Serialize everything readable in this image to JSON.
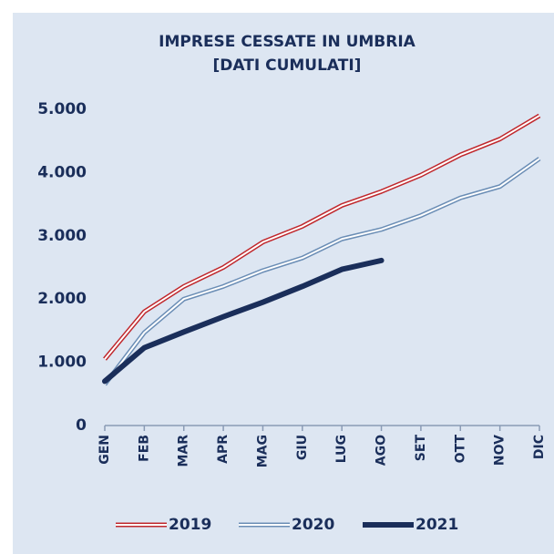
{
  "chart_data": {
    "type": "line",
    "title": [
      "IMPRESE CESSATE IN UMBRIA",
      "[DATI CUMULATI]"
    ],
    "categories": [
      "GEN",
      "FEB",
      "MAR",
      "APR",
      "MAG",
      "GIU",
      "LUG",
      "AGO",
      "SET",
      "OTT",
      "NOV",
      "DIC"
    ],
    "series": [
      {
        "name": "2019",
        "color": "#c0282d",
        "outline": true,
        "values": [
          1050,
          1800,
          2200,
          2500,
          2900,
          3150,
          3480,
          3700,
          3960,
          4280,
          4530,
          4900
        ]
      },
      {
        "name": "2020",
        "color": "#6a8db5",
        "outline": true,
        "values": [
          650,
          1470,
          2000,
          2200,
          2450,
          2650,
          2950,
          3100,
          3320,
          3600,
          3780,
          4220
        ]
      },
      {
        "name": "2021",
        "color": "#1a2e5a",
        "outline": false,
        "values": [
          700,
          1230,
          1480,
          1720,
          1950,
          2200,
          2470,
          2610,
          null,
          null,
          null,
          null
        ]
      }
    ],
    "ylim": [
      0,
      5000
    ],
    "yticks": [
      {
        "value": 0,
        "label": "0"
      },
      {
        "value": 1000,
        "label": "1.000"
      },
      {
        "value": 2000,
        "label": "2.000"
      },
      {
        "value": 3000,
        "label": "3.000"
      },
      {
        "value": 4000,
        "label": "4.000"
      },
      {
        "value": 5000,
        "label": "5.000"
      }
    ],
    "grid": false,
    "legend": "bottom"
  }
}
